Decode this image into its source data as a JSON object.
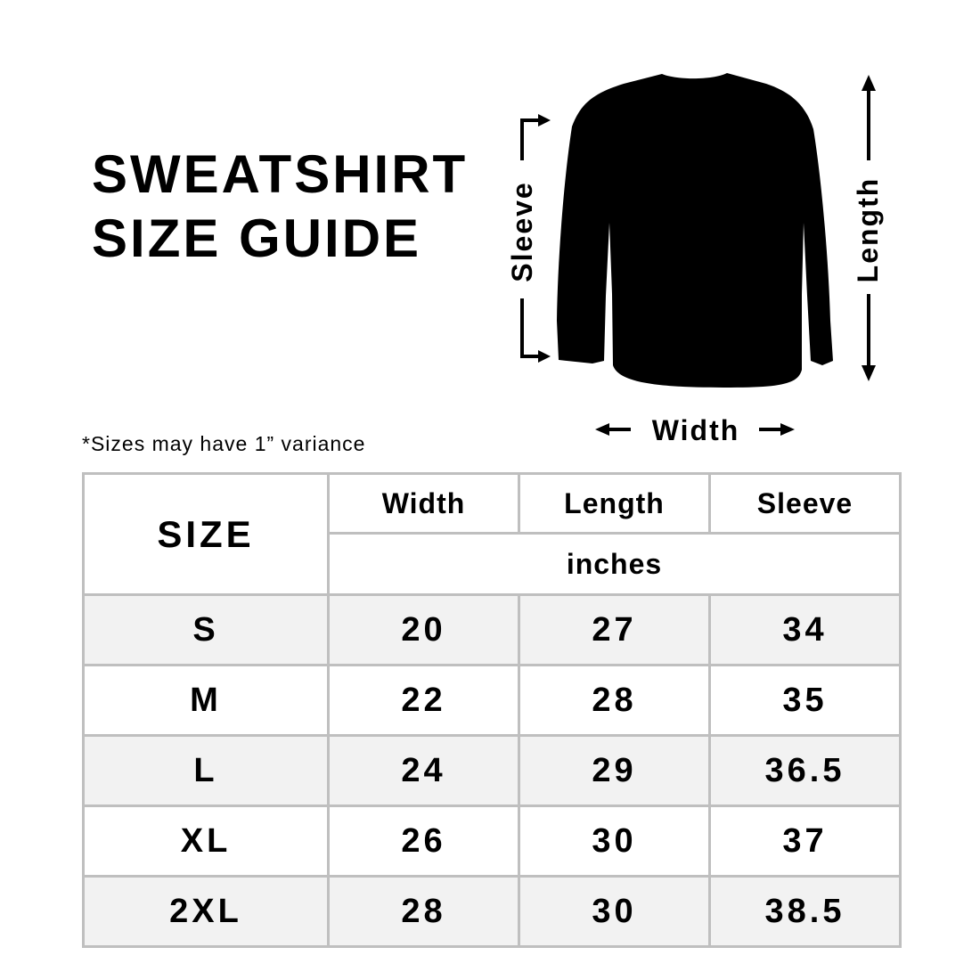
{
  "title": {
    "line1": "SWEATSHIRT",
    "line2": "SIZE GUIDE"
  },
  "note": "*Sizes may have 1” variance",
  "diagram": {
    "sleeve_label": "Sleeve",
    "length_label": "Length",
    "width_label": "Width",
    "garment_color": "#000000"
  },
  "table": {
    "size_header": "SIZE",
    "columns": [
      "Width",
      "Length",
      "Sleeve"
    ],
    "unit": "inches",
    "rows": [
      {
        "size": "S",
        "width": "20",
        "length": "27",
        "sleeve": "34"
      },
      {
        "size": "M",
        "width": "22",
        "length": "28",
        "sleeve": "35"
      },
      {
        "size": "L",
        "width": "24",
        "length": "29",
        "sleeve": "36.5"
      },
      {
        "size": "XL",
        "width": "26",
        "length": "30",
        "sleeve": "37"
      },
      {
        "size": "2XL",
        "width": "28",
        "length": "30",
        "sleeve": "38.5"
      }
    ],
    "border_color": "#bfbfbf",
    "stripe_color": "#f2f2f2"
  }
}
